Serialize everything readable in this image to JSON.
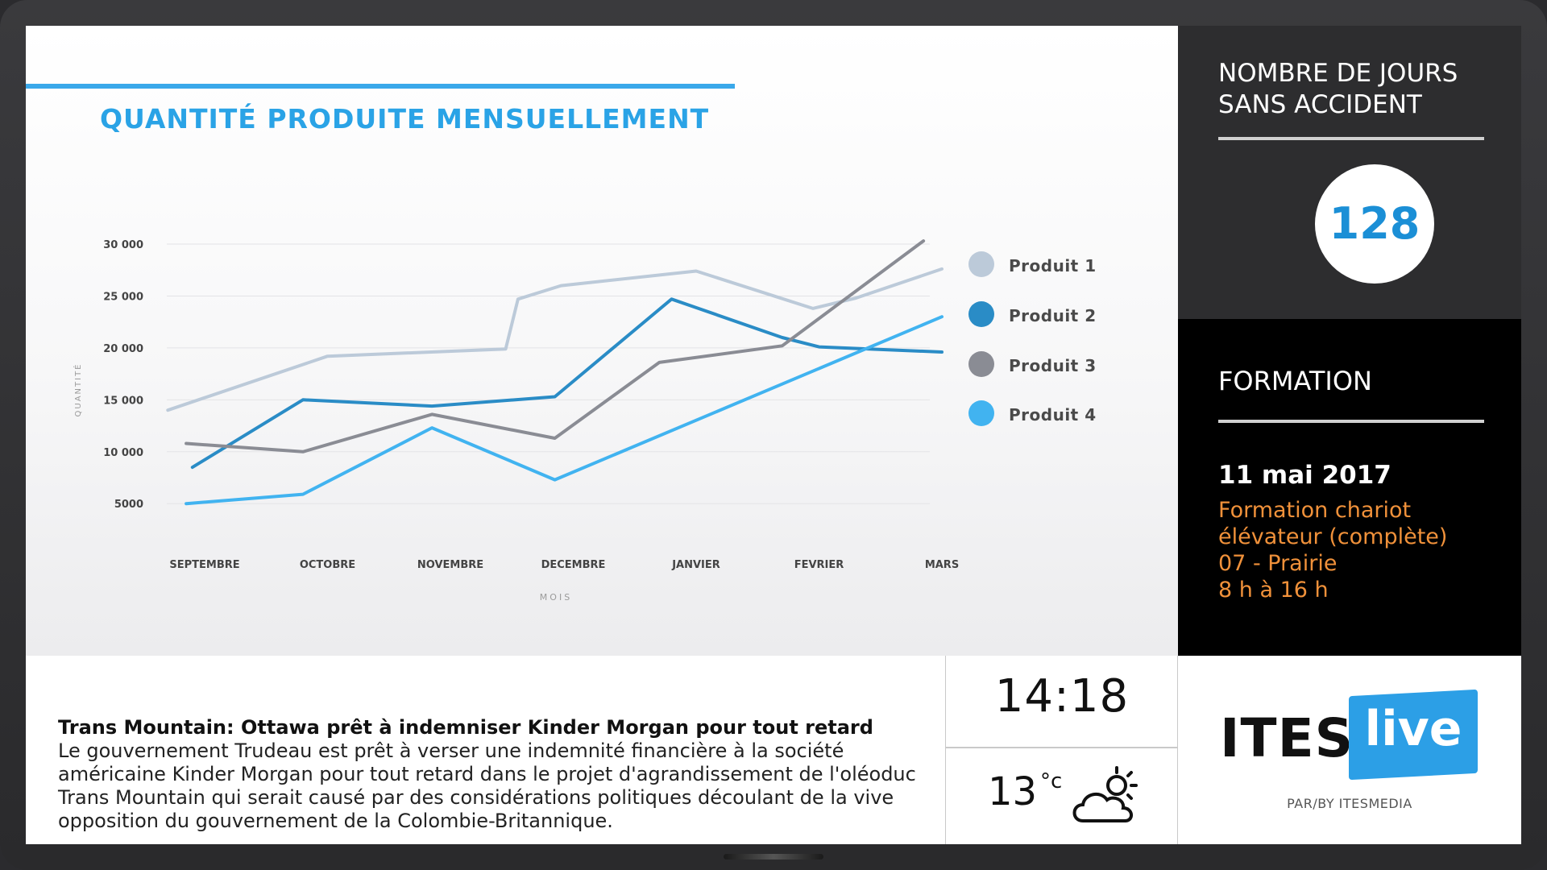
{
  "chart_data": {
    "type": "line",
    "title": "QUANTITÉ PRODUITE MENSUELLEMENT",
    "xlabel": "MOIS",
    "ylabel": "QUANTITÉ",
    "categories": [
      "SEPTEMBRE",
      "OCTOBRE",
      "NOVEMBRE",
      "DECEMBRE",
      "JANVIER",
      "FEVRIER",
      "MARS"
    ],
    "y_ticks": [
      5000,
      10000,
      15000,
      20000,
      25000,
      30000
    ],
    "y_tick_labels": [
      "5000",
      "10 000",
      "15 000",
      "20 000",
      "25 000",
      "30 000"
    ],
    "ylim": [
      3000,
      30000
    ],
    "grid": true,
    "legend_position": "right",
    "series": [
      {
        "name": "Produit 1",
        "color": "#bccad9",
        "x": [
          "SEPTEMBRE",
          "OCTOBRE",
          "NOVEMBRE",
          "NOVEMBRE",
          "DECEMBRE",
          "JANVIER",
          "FEVRIER",
          "FEVRIER",
          "MARS"
        ],
        "x_offsets": [
          -0.3,
          0,
          0.45,
          0.55,
          -0.1,
          0,
          -0.05,
          0.3,
          0
        ],
        "values": [
          14000,
          19200,
          19900,
          24700,
          26000,
          27400,
          23800,
          24800,
          27600
        ]
      },
      {
        "name": "Produit 2",
        "color": "#2a8cc6",
        "x": [
          "SEPTEMBRE",
          "OCTOBRE",
          "NOVEMBRE",
          "DECEMBRE",
          "JANVIER",
          "FEVRIER",
          "FEVRIER",
          "MARS"
        ],
        "x_offsets": [
          -0.1,
          -0.2,
          -0.15,
          -0.15,
          -0.2,
          -0.3,
          0,
          0
        ],
        "values": [
          8500,
          15000,
          14400,
          15300,
          24700,
          21000,
          20100,
          19600
        ]
      },
      {
        "name": "Produit 3",
        "color": "#8a8c94",
        "x": [
          "SEPTEMBRE",
          "OCTOBRE",
          "NOVEMBRE",
          "DECEMBRE",
          "DECEMBRE",
          "FEVRIER",
          "MARS"
        ],
        "x_offsets": [
          -0.15,
          -0.2,
          -0.15,
          -0.15,
          0.7,
          -0.3,
          -0.15
        ],
        "values": [
          10800,
          10000,
          13600,
          11300,
          18600,
          20200,
          30300
        ]
      },
      {
        "name": "Produit 4",
        "color": "#41b3f0",
        "x": [
          "SEPTEMBRE",
          "OCTOBRE",
          "NOVEMBRE",
          "DECEMBRE",
          "MARS"
        ],
        "x_offsets": [
          -0.15,
          -0.2,
          -0.15,
          -0.15,
          0
        ],
        "values": [
          5000,
          5900,
          12300,
          7300,
          23000
        ]
      }
    ]
  },
  "safety": {
    "title_line1": "NOMBRE DE JOURS",
    "title_line2": "SANS ACCIDENT",
    "days": "128"
  },
  "training": {
    "title": "FORMATION",
    "date": "11 mai 2017",
    "line1": "Formation chariot",
    "line2": "élévateur (complète)",
    "line3": "07 - Prairie",
    "line4": "8 h à 16 h"
  },
  "news": {
    "headline": "Trans Mountain: Ottawa prêt à indemniser Kinder Morgan pour tout retard",
    "body": "Le gouvernement Trudeau est prêt à verser une indemnité financière à la société américaine Kinder Morgan pour tout retard dans le projet d'agrandissement de l'oléoduc Trans Mountain qui serait causé par des considérations politiques découlant de la vive opposition du gouvernement de la Colombie-Britannique."
  },
  "clock": {
    "time": "14:18"
  },
  "weather": {
    "temperature": "13",
    "unit": "°c",
    "icon": "partly-cloudy-icon"
  },
  "brand": {
    "word": "ITES",
    "badge": "live",
    "byline": "PAR/BY ITESMEDIA",
    "accent": "#2c9fe6"
  }
}
